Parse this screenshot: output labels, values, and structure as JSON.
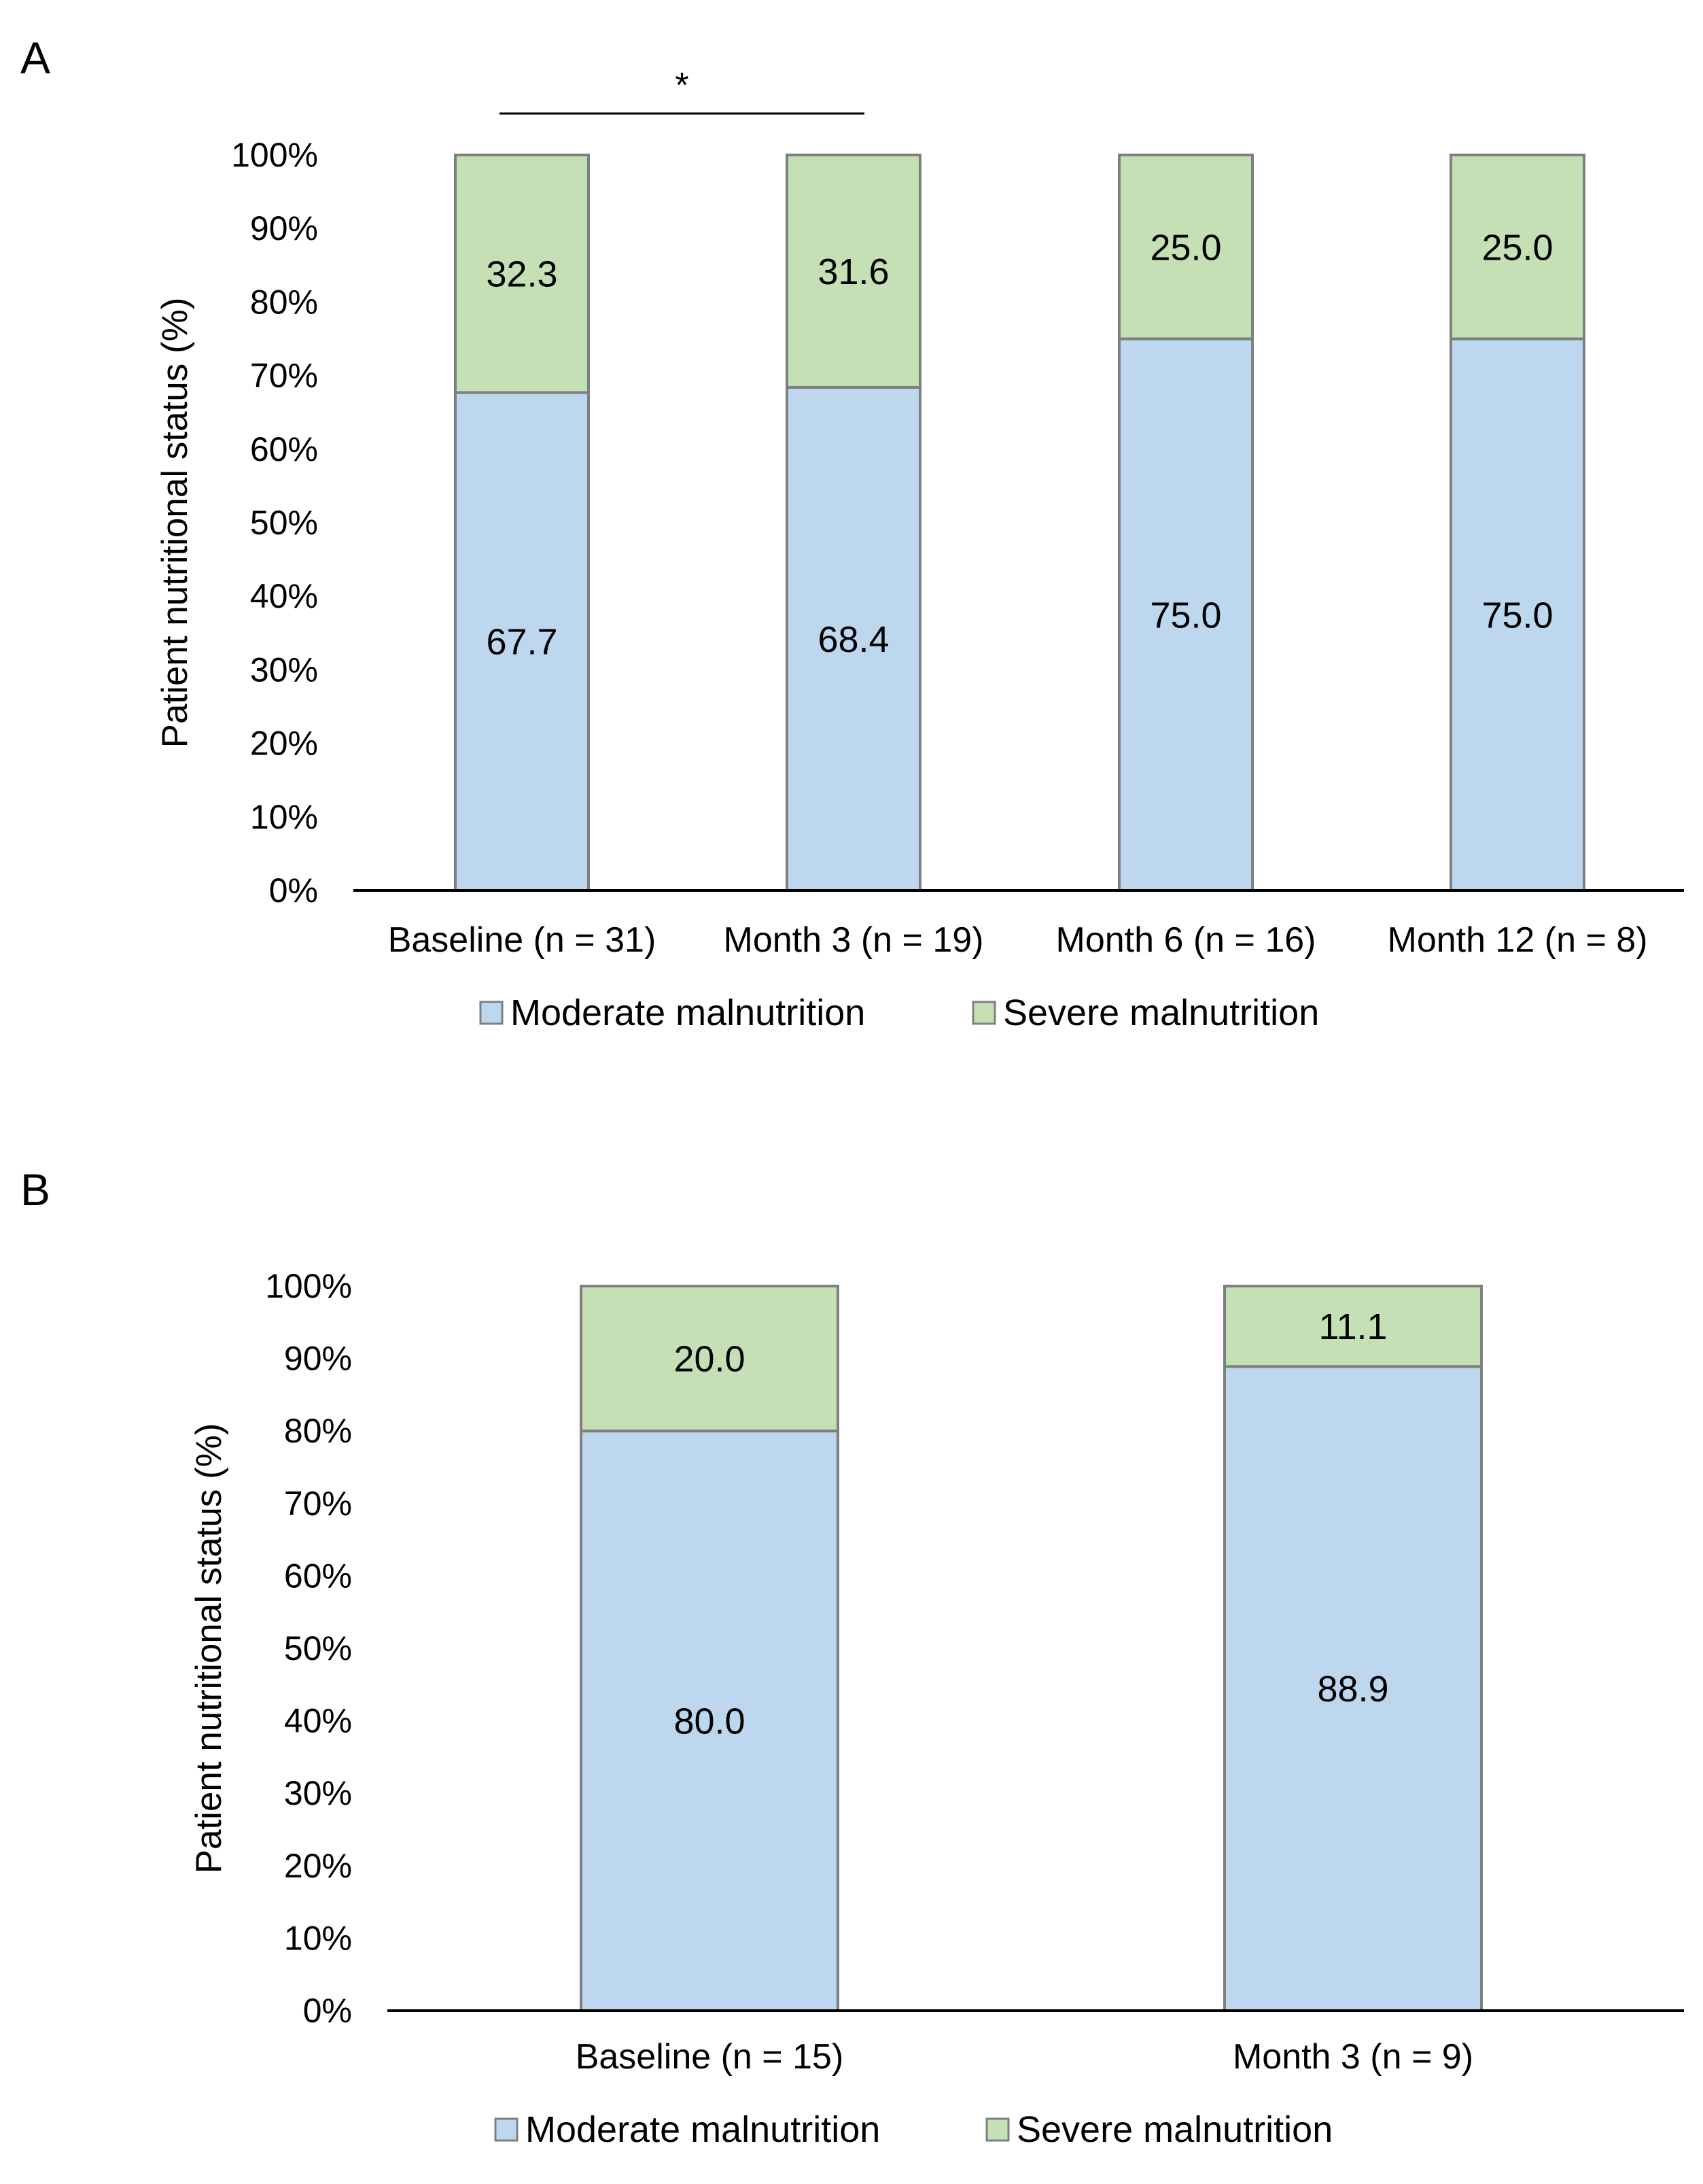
{
  "chart_data": [
    {
      "type": "bar",
      "stacked": true,
      "panel": "A",
      "categories": [
        "Baseline (n = 31)",
        "Month 3 (n = 19)",
        "Month 6 (n = 16)",
        "Month 12 (n = 8)"
      ],
      "series": [
        {
          "name": "Moderate malnutrition",
          "values": [
            67.7,
            68.4,
            75.0,
            75.0
          ],
          "labels": [
            "67.7",
            "68.4",
            "75.0",
            "75.0"
          ],
          "color": "#bdd7ee"
        },
        {
          "name": "Severe malnutrition",
          "values": [
            32.3,
            31.6,
            25.0,
            25.0
          ],
          "labels": [
            "32.3",
            "31.6",
            "25.0",
            "25.0"
          ],
          "color": "#c5e0b4"
        }
      ],
      "ylabel": "Patient nutritional status (%)",
      "ylim": [
        0,
        100
      ],
      "yticks": [
        "0%",
        "10%",
        "20%",
        "30%",
        "40%",
        "50%",
        "60%",
        "70%",
        "80%",
        "90%",
        "100%"
      ],
      "significance": {
        "from": 0,
        "to": 1,
        "label": "*"
      },
      "legend_position": "bottom",
      "grid": false
    },
    {
      "type": "bar",
      "stacked": true,
      "panel": "B",
      "categories": [
        "Baseline (n = 15)",
        "Month 3 (n = 9)"
      ],
      "series": [
        {
          "name": "Moderate malnutrition",
          "values": [
            80.0,
            88.9
          ],
          "labels": [
            "80.0",
            "88.9"
          ],
          "color": "#bdd7ee"
        },
        {
          "name": "Severe malnutrition",
          "values": [
            20.0,
            11.1
          ],
          "labels": [
            "20.0",
            "11.1"
          ],
          "color": "#c5e0b4"
        }
      ],
      "ylabel": "Patient nutritional status (%)",
      "ylim": [
        0,
        100
      ],
      "yticks": [
        "0%",
        "10%",
        "20%",
        "30%",
        "40%",
        "50%",
        "60%",
        "70%",
        "80%",
        "90%",
        "100%"
      ],
      "legend_position": "bottom",
      "grid": false
    }
  ],
  "colors": {
    "bar_stroke": "#7f7f7f",
    "axis": "#000000"
  }
}
